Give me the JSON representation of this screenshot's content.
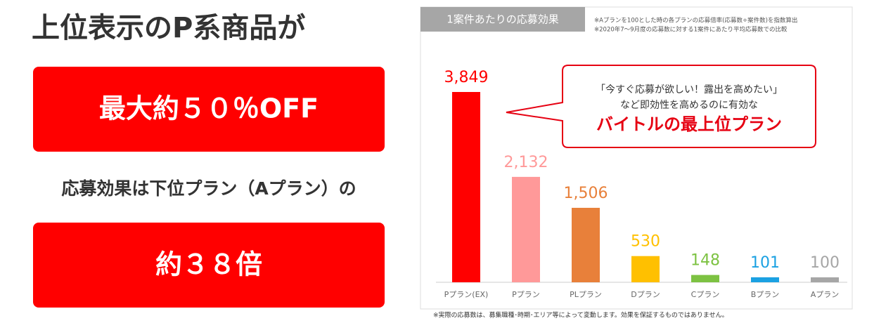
{
  "left_panel": {
    "title": "上位表示のP系商品が",
    "highlight_1": "最大約５０％OFF",
    "middle_text": "応募効果は下位プラン（Aプラン）の",
    "highlight_2": "約３８倍"
  },
  "chart_data": {
    "type": "bar",
    "title": "1案件あたりの応募効果",
    "notes": [
      "※Aプランを100とした時の各プランの応募倍率(応募数÷案件数)を指数算出",
      "※2020年7～9月度の応募数に対する1案件にあたり平均応募数での比較"
    ],
    "categories": [
      "Pプラン(EX)",
      "Pプラン",
      "PLプラン",
      "Dプラン",
      "Cプラン",
      "Bプラン",
      "Aプラン"
    ],
    "values": [
      3849,
      2132,
      1506,
      530,
      148,
      101,
      100
    ],
    "value_labels": [
      "3,849",
      "2,132",
      "1,506",
      "530",
      "148",
      "101",
      "100"
    ],
    "colors": [
      "#ff0000",
      "#ff9999",
      "#e8803a",
      "#ffc000",
      "#7dc242",
      "#1ba1e2",
      "#a6a6a6"
    ],
    "callout": [
      "「今すぐ応募が欲しい！露出を高めたい」",
      "など即効性を高めるのに有効な",
      "バイトルの最上位プラン"
    ],
    "footnote": "※実際の応募数は、募集職種･時期･エリア等によって変動します。効果を保証するものではありません。"
  }
}
